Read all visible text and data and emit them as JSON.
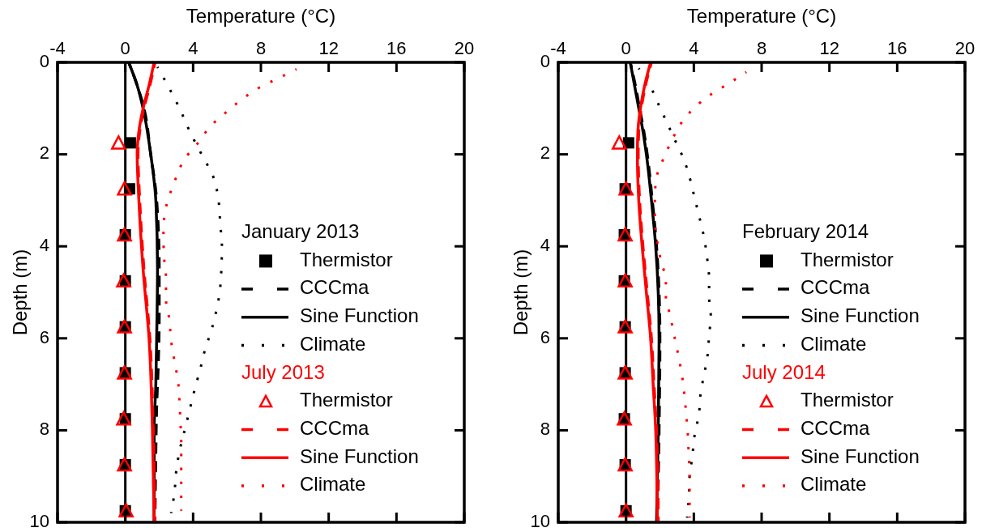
{
  "chart_data": [
    {
      "type": "line",
      "xlabel": "Temperature (°C)",
      "ylabel": "Depth (m)",
      "xlim": [
        -4,
        20
      ],
      "xticks": [
        -4,
        0,
        4,
        8,
        12,
        16,
        20
      ],
      "ylim": [
        10,
        0
      ],
      "yticks": [
        0,
        2,
        4,
        6,
        8,
        10
      ],
      "grid": false,
      "legend": "bottom right",
      "annotations": [
        "January 2013",
        "July 2013"
      ],
      "ref_lines": [
        {
          "axis": "x",
          "value": 0,
          "color": "#000000"
        }
      ],
      "series": [
        {
          "name": "Thermistor",
          "type": "scatter",
          "marker": "square",
          "color": "#000000",
          "x": [
            0.3,
            0.25,
            0,
            0,
            0,
            0,
            0,
            0,
            0
          ],
          "values": [
            1.75,
            2.75,
            3.75,
            4.75,
            5.75,
            6.75,
            7.75,
            8.75,
            9.75
          ]
        },
        {
          "name": "CCCma",
          "line_style": "dashed",
          "color": "#000000",
          "x": [
            0.2,
            0.7,
            1.1,
            1.5,
            1.85,
            2.0,
            2.0,
            1.95,
            1.85,
            1.8,
            1.75
          ],
          "values": [
            0,
            0.5,
            1,
            2,
            3,
            4.5,
            5.5,
            6.5,
            7.5,
            8.5,
            10
          ]
        },
        {
          "name": "Sine Function",
          "line_style": "solid",
          "color": "#000000",
          "x": [
            0.2,
            0.7,
            1.05,
            1.5,
            1.8,
            1.9,
            1.85,
            1.8,
            1.7,
            1.7
          ],
          "values": [
            0,
            0.5,
            1,
            2,
            3,
            4.5,
            6,
            7,
            8,
            10
          ]
        },
        {
          "name": "Climate",
          "line_style": "dotted",
          "color": "#000000",
          "x": [
            1.9,
            2.5,
            3.2,
            3.8,
            4.5,
            5.2,
            5.5,
            5.6,
            5.7,
            5.6,
            5.4,
            5.1,
            4.7,
            4.4,
            4.1,
            3.8,
            3.5,
            3.2,
            3.0,
            2.9,
            2.7
          ],
          "values": [
            0.1,
            0.5,
            1,
            1.5,
            2,
            2.5,
            3,
            3.5,
            4,
            4.9,
            5.35,
            5.8,
            6.25,
            6.7,
            7.1,
            7.55,
            8,
            8.45,
            8.9,
            9.35,
            9.8
          ]
        },
        {
          "name": "Thermistor",
          "type": "scatter",
          "marker": "triangle",
          "color": "#ff0000",
          "x": [
            -0.4,
            -0.05,
            -0.05,
            -0.1,
            -0.05,
            -0.05,
            -0.1,
            -0.05,
            0.05
          ],
          "values": [
            1.75,
            2.75,
            3.75,
            4.75,
            5.75,
            6.75,
            7.75,
            8.75,
            9.75
          ]
        },
        {
          "name": "CCCma",
          "line_style": "dashed",
          "color": "#ff0000",
          "x": [
            1.75,
            1.45,
            1.1,
            0.85,
            0.75,
            0.85,
            1.1,
            1.45,
            1.65,
            1.75
          ],
          "values": [
            0,
            0.5,
            1,
            1.5,
            2,
            3,
            4.5,
            6,
            8,
            10
          ]
        },
        {
          "name": "Sine Function",
          "line_style": "solid",
          "color": "#ff0000",
          "x": [
            1.7,
            1.4,
            1.05,
            0.8,
            0.7,
            0.8,
            1.05,
            1.4,
            1.6,
            1.7
          ],
          "values": [
            0,
            0.5,
            1,
            1.5,
            2,
            3,
            4.5,
            6,
            8,
            10
          ]
        },
        {
          "name": "Climate",
          "line_style": "dotted",
          "color": "#ff0000",
          "x": [
            10.1,
            9.0,
            7.9,
            6.9,
            5.9,
            5.0,
            4.3,
            3.5,
            3.0,
            2.6,
            2.3,
            2.25,
            2.3,
            2.4,
            2.4,
            2.6,
            2.7,
            2.9,
            3.1,
            3.2,
            3.25,
            3.3,
            3.3,
            3.3,
            3.3,
            3.3
          ],
          "values": [
            0.15,
            0.35,
            0.55,
            0.8,
            1.1,
            1.4,
            1.75,
            2.1,
            2.5,
            2.9,
            3.35,
            3.8,
            4.3,
            4.7,
            5.15,
            5.6,
            6.05,
            6.5,
            6.9,
            7.4,
            7.8,
            8.3,
            8.7,
            9.15,
            9.6,
            9.75
          ]
        }
      ]
    },
    {
      "type": "line",
      "xlabel": "Temperature (°C)",
      "ylabel": "Depth (m)",
      "xlim": [
        -4,
        20
      ],
      "xticks": [
        -4,
        0,
        4,
        8,
        12,
        16,
        20
      ],
      "ylim": [
        10,
        0
      ],
      "yticks": [
        0,
        2,
        4,
        6,
        8,
        10
      ],
      "grid": false,
      "legend": "bottom right",
      "annotations": [
        "February 2014",
        "July 2014"
      ],
      "ref_lines": [
        {
          "axis": "x",
          "value": 0,
          "color": "#000000"
        }
      ],
      "series": [
        {
          "name": "Thermistor",
          "type": "scatter",
          "marker": "square",
          "color": "#000000",
          "x": [
            0.15,
            -0.05,
            -0.1,
            -0.1,
            -0.05,
            -0.05,
            -0.1,
            -0.05,
            0
          ],
          "values": [
            1.75,
            2.75,
            3.75,
            4.75,
            5.75,
            6.75,
            7.75,
            8.75,
            9.75
          ]
        },
        {
          "name": "CCCma",
          "line_style": "dashed",
          "color": "#000000",
          "x": [
            0.25,
            0.55,
            0.8,
            1.05,
            1.25,
            1.55,
            1.8,
            1.95,
            2.0,
            1.95,
            1.85
          ],
          "values": [
            0,
            0.5,
            1,
            1.5,
            2,
            3,
            4,
            5,
            6,
            8,
            10
          ]
        },
        {
          "name": "Sine Function",
          "line_style": "solid",
          "color": "#000000",
          "x": [
            0.25,
            0.5,
            0.75,
            1.0,
            1.2,
            1.5,
            1.75,
            1.9,
            1.95,
            1.9,
            1.8
          ],
          "values": [
            0,
            0.5,
            1,
            1.5,
            2,
            3,
            4,
            5,
            6,
            8,
            10
          ]
        },
        {
          "name": "Climate",
          "line_style": "dotted",
          "color": "#000000",
          "x": [
            0.75,
            1.4,
            1.9,
            2.4,
            2.9,
            3.4,
            3.75,
            4.05,
            4.35,
            4.6,
            4.8,
            4.9,
            4.9,
            5.0,
            4.9,
            4.8,
            4.6,
            4.4,
            4.3,
            4.05,
            3.9,
            3.75,
            3.7,
            3.6
          ],
          "values": [
            0.13,
            0.5,
            0.9,
            1.3,
            1.7,
            2.1,
            2.5,
            2.95,
            3.4,
            3.8,
            4.3,
            4.7,
            5.1,
            5.5,
            5.95,
            6.4,
            6.8,
            7.2,
            7.65,
            8.1,
            8.6,
            9.0,
            9.5,
            9.9
          ]
        },
        {
          "name": "Thermistor",
          "type": "scatter",
          "marker": "triangle",
          "color": "#ff0000",
          "x": [
            -0.4,
            0,
            -0.05,
            -0.05,
            -0.05,
            -0.05,
            -0.1,
            -0.05,
            0
          ],
          "values": [
            1.75,
            2.75,
            3.75,
            4.75,
            5.75,
            6.75,
            7.75,
            8.75,
            9.75
          ]
        },
        {
          "name": "CCCma",
          "line_style": "dashed",
          "color": "#ff0000",
          "x": [
            1.5,
            1.15,
            0.9,
            0.75,
            0.72,
            0.8,
            1.0,
            1.25,
            1.5,
            1.65,
            1.8,
            1.9
          ],
          "values": [
            0,
            0.5,
            1,
            1.5,
            2,
            3,
            4,
            5,
            6,
            7,
            8,
            10
          ]
        },
        {
          "name": "Sine Function",
          "line_style": "solid",
          "color": "#ff0000",
          "x": [
            1.45,
            1.1,
            0.85,
            0.7,
            0.67,
            0.75,
            0.95,
            1.2,
            1.45,
            1.6,
            1.75,
            1.85
          ],
          "values": [
            0,
            0.5,
            1,
            1.5,
            2,
            3,
            4,
            5,
            6,
            7,
            8,
            10
          ]
        },
        {
          "name": "Climate",
          "line_style": "dotted",
          "color": "#ff0000",
          "x": [
            7.1,
            6.1,
            5.0,
            4.0,
            3.2,
            2.7,
            2.2,
            1.8,
            1.7,
            1.7,
            1.8,
            2.05,
            2.35,
            2.35,
            2.6,
            2.85,
            3.1,
            3.3,
            3.45,
            3.55,
            3.65,
            3.7,
            3.75,
            3.75,
            3.75
          ],
          "values": [
            0.21,
            0.45,
            0.7,
            1.0,
            1.35,
            1.7,
            2.1,
            2.5,
            2.95,
            3.4,
            3.8,
            4.3,
            4.75,
            5.1,
            5.5,
            5.95,
            6.4,
            6.8,
            7.25,
            7.65,
            8.1,
            8.55,
            9.0,
            9.45,
            9.9
          ]
        }
      ]
    }
  ]
}
